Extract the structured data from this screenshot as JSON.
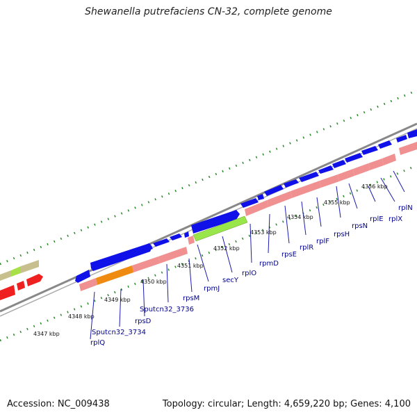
{
  "title": "Shewanella putrefaciens CN-32, complete genome",
  "footer": {
    "accession": "Accession: NC_009438",
    "topology": "Topology: circular; Length: 4,659,220 bp; Genes: 4,100"
  },
  "kbp_ticks": [
    "4347 kbp",
    "4348 kbp",
    "4349 kbp",
    "4350 kbp",
    "4351 kbp",
    "4352 kbp",
    "4353 kbp",
    "4354 kbp",
    "4355 kbp",
    "4356 kbp"
  ],
  "gene_labels": [
    "rplQ",
    "Sputcn32_3734",
    "rpsD",
    "Sputcn32_3736",
    "rpsM",
    "rpmJ",
    "secY",
    "rplO",
    "rpmD",
    "rpsE",
    "rplR",
    "rplF",
    "rpsH",
    "rpsN",
    "rplE",
    "rplX",
    "rplN"
  ],
  "colors": {
    "forward_cds": "#1010e8",
    "reverse_cds": "#f09090",
    "highlight_green": "#99e64a",
    "highlight_orange": "#ee8b10",
    "tick_green": "#2a8a2a",
    "backbone": "#888888"
  }
}
